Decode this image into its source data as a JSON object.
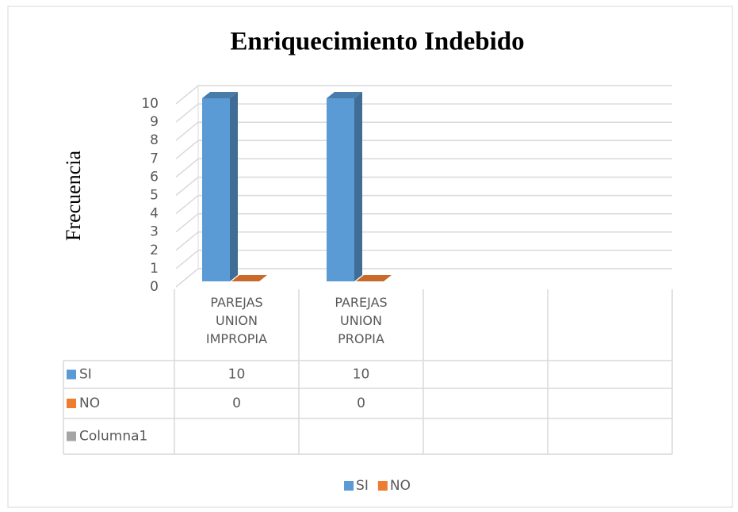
{
  "chart_data": {
    "type": "bar3d",
    "title": "Enriquecimiento Indebido",
    "y_label": "Frecuencia",
    "categories": [
      "PAREJAS UNION IMPROPIA",
      "PAREJAS UNION PROPIA",
      null,
      null
    ],
    "series": [
      {
        "name": "SI",
        "color": "#5b9bd5",
        "values": [
          10,
          10,
          null,
          null
        ]
      },
      {
        "name": "NO",
        "color": "#ed7d31",
        "values": [
          0,
          0,
          null,
          null
        ]
      },
      {
        "name": "Columna1",
        "color": "#a5a5a5",
        "values": [
          null,
          null,
          null,
          null
        ]
      }
    ],
    "ylim": [
      0,
      10
    ],
    "yticks": [
      0,
      1,
      2,
      3,
      4,
      5,
      6,
      7,
      8,
      9,
      10
    ],
    "grid": true,
    "legend": "bottom",
    "data_table": true
  }
}
